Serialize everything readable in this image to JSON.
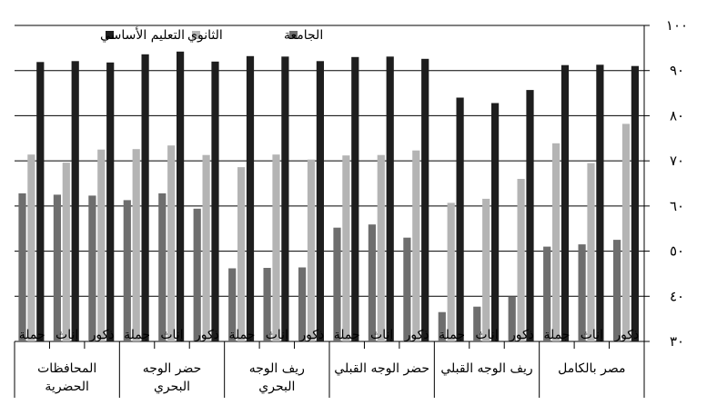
{
  "chart_data": {
    "type": "bar",
    "title": "",
    "xlabel": "",
    "ylabel": "",
    "ylim": [
      30,
      100
    ],
    "y_ticks": [
      "٣٠",
      "٤٠",
      "٥٠",
      "٦٠",
      "٧٠",
      "٨٠",
      "٩٠",
      "١٠٠"
    ],
    "grid": true,
    "legend_position": "top-left",
    "x_direction": "right-to-left",
    "categories": [
      "ذكور",
      "إناث",
      "جملة",
      "ذكور",
      "إناث",
      "جملة",
      "ذكور",
      "إناث",
      "جملة",
      "ذكور",
      "إناث",
      "جملة",
      "ذكور",
      "إناث",
      "جملة",
      "ذكور",
      "إناث",
      "جملة"
    ],
    "groups": [
      {
        "label": [
          "مصر بالكامل"
        ]
      },
      {
        "label": [
          "ريف الوجه القبلي"
        ]
      },
      {
        "label": [
          "حضر الوجه القبلي"
        ]
      },
      {
        "label": [
          "ريف الوجه",
          "البحري"
        ]
      },
      {
        "label": [
          "حضر الوجه",
          "البحري"
        ]
      },
      {
        "label": [
          "المحافظات",
          "الحضرية"
        ]
      }
    ],
    "series": [
      {
        "name": "الجامعة",
        "color": "#6e6e6e",
        "values": [
          52.5,
          51.5,
          51,
          40,
          37.7,
          36.5,
          53,
          55.9,
          55.2,
          46.4,
          46.3,
          46.2,
          59.4,
          62.8,
          61.3,
          62.3,
          62.5,
          62.8
        ]
      },
      {
        "name": "الثانوي",
        "color": "#b4b4b4",
        "values": [
          78.2,
          69.5,
          73.9,
          66,
          61.6,
          60.7,
          72.3,
          71.3,
          71.2,
          70.3,
          71.4,
          68.6,
          71.3,
          73.4,
          72.6,
          72.5,
          69.6,
          71.4
        ]
      },
      {
        "name": "التعليم الأساسي",
        "color": "#1e1e1e",
        "values": [
          91,
          91.3,
          91.2,
          85.7,
          82.8,
          84,
          92.6,
          93.1,
          93,
          92.1,
          93.1,
          93.2,
          92,
          94.2,
          93.6,
          91.8,
          92.1,
          91.9
        ]
      }
    ]
  }
}
